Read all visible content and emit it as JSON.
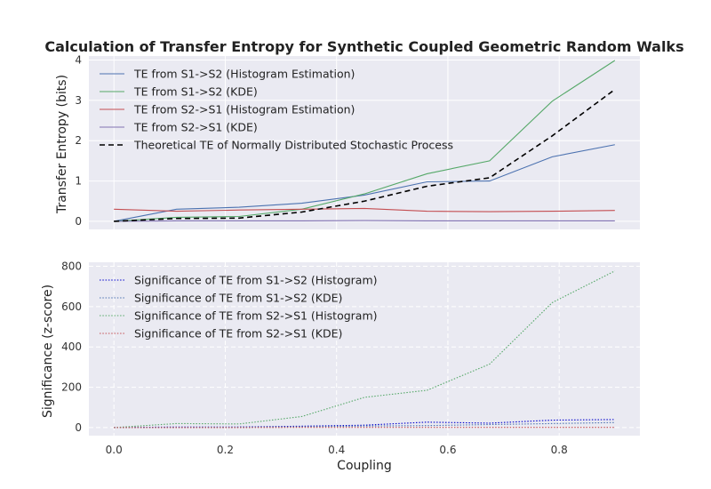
{
  "chart_data": [
    {
      "type": "line",
      "title": "Calculation of Transfer Entropy for Synthetic Coupled Geometric Random Walks",
      "xlabel": "",
      "ylabel": "Transfer Entropy (bits)",
      "x": [
        0.0,
        0.1125,
        0.225,
        0.3375,
        0.45,
        0.5625,
        0.675,
        0.7875,
        0.9
      ],
      "xlim": [
        -0.045,
        0.945
      ],
      "ylim": [
        -0.2,
        4.1
      ],
      "yticks": [
        0,
        1,
        2,
        3,
        4
      ],
      "grid": "solid",
      "legend_position": "top-left",
      "series": [
        {
          "name": "TE from S1->S2 (Histogram Estimation)",
          "color": "#4c72b0",
          "dash": "solid",
          "values": [
            0.0,
            0.3,
            0.35,
            0.45,
            0.65,
            0.98,
            1.0,
            1.6,
            1.9
          ]
        },
        {
          "name": "TE from S1->S2 (KDE)",
          "color": "#55a868",
          "dash": "solid",
          "values": [
            0.0,
            0.1,
            0.12,
            0.3,
            0.68,
            1.18,
            1.5,
            2.98,
            3.99
          ]
        },
        {
          "name": "TE from S2->S1 (Histogram Estimation)",
          "color": "#c44e52",
          "dash": "solid",
          "values": [
            0.3,
            0.25,
            0.28,
            0.3,
            0.32,
            0.25,
            0.24,
            0.25,
            0.27
          ]
        },
        {
          "name": "TE from S2->S1 (KDE)",
          "color": "#8172b2",
          "dash": "solid",
          "values": [
            0.0,
            0.01,
            0.01,
            0.01,
            0.02,
            0.01,
            0.01,
            0.01,
            0.01
          ]
        },
        {
          "name": "Theoretical TE of Normally Distributed Stochastic Process",
          "color": "#000000",
          "dash": "dashed",
          "values": [
            0.0,
            0.07,
            0.08,
            0.23,
            0.5,
            0.87,
            1.08,
            2.12,
            3.27
          ]
        }
      ]
    },
    {
      "type": "line",
      "title": "",
      "xlabel": "Coupling",
      "ylabel": "Significance (z-score)",
      "x": [
        0.0,
        0.1125,
        0.225,
        0.3375,
        0.45,
        0.5625,
        0.675,
        0.7875,
        0.9
      ],
      "xlim": [
        -0.045,
        0.945
      ],
      "ylim": [
        -40,
        820
      ],
      "xticks": [
        0.0,
        0.2,
        0.4,
        0.6,
        0.8
      ],
      "xtick_labels": [
        "0.0",
        "0.2",
        "0.4",
        "0.6",
        "0.8"
      ],
      "yticks": [
        0,
        200,
        400,
        600,
        800
      ],
      "grid": "dashed",
      "legend_position": "top-left",
      "series": [
        {
          "name": "Significance of TE from S1->S2 (Histogram)",
          "color": "#0000cc",
          "dash": "dotted",
          "values": [
            0,
            3,
            3,
            7,
            12,
            27,
            22,
            37,
            40
          ]
        },
        {
          "name": "Significance of TE from S1->S2 (KDE)",
          "color": "#4c72b0",
          "dash": "dotted",
          "values": [
            0,
            1,
            2,
            4,
            8,
            10,
            15,
            20,
            25
          ]
        },
        {
          "name": "Significance of TE from S2->S1 (Histogram)",
          "color": "#55a868",
          "dash": "dotted",
          "values": [
            0,
            20,
            18,
            55,
            150,
            185,
            315,
            620,
            777
          ]
        },
        {
          "name": "Significance of TE from S2->S1 (KDE)",
          "color": "#c44e52",
          "dash": "dotted",
          "values": [
            0,
            0,
            0,
            1,
            1,
            1,
            1,
            1,
            1
          ]
        }
      ]
    }
  ]
}
